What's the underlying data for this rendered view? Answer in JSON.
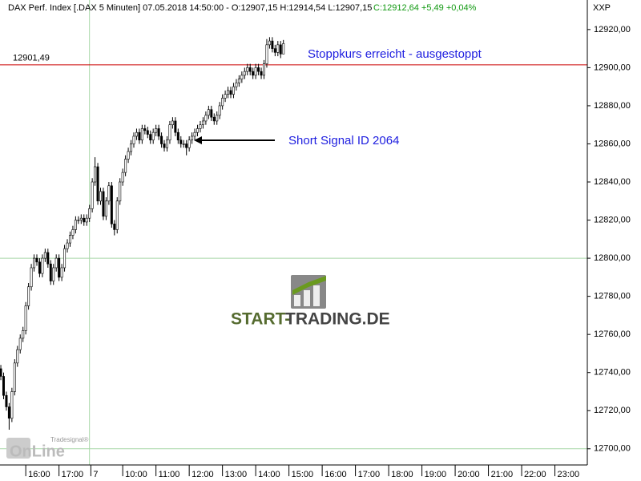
{
  "chart_data": {
    "type": "candlestick",
    "header": {
      "text": "DAX Perf. Index [.DAX  5 Minuten] 07.05.2018 14:50:00 - O:12907,15 H:12914,54 L:12907,15",
      "change": "C:12912,64 +5,49 +0,04%"
    },
    "axis_label": "XXP",
    "x": [
      0,
      1,
      2,
      3,
      4,
      5,
      6,
      7,
      8,
      9,
      10,
      11,
      12,
      13,
      14,
      15,
      16,
      17,
      18,
      19,
      20,
      21,
      22,
      23,
      24,
      25,
      26,
      27,
      28,
      29,
      30,
      31,
      32,
      33,
      34,
      35,
      36,
      37,
      38,
      39,
      40,
      41,
      42,
      43,
      44,
      45,
      46,
      47,
      48,
      49,
      50,
      51,
      52,
      53,
      54,
      55,
      56,
      57,
      58,
      59,
      60,
      61,
      62,
      63,
      64,
      65,
      66,
      67,
      68,
      69,
      70,
      71,
      72,
      73,
      74,
      75,
      76,
      77,
      78,
      79,
      80,
      81,
      82,
      83,
      84,
      85,
      86,
      87,
      88,
      89,
      90,
      91,
      92,
      93,
      94,
      95,
      96,
      97,
      98,
      99,
      100,
      101,
      102
    ],
    "open": [
      12742,
      12738,
      12728,
      12722,
      12716,
      12730,
      12745,
      12752,
      12758,
      12762,
      12775,
      12785,
      12795,
      12800,
      12798,
      12792,
      12800,
      12803,
      12797,
      12788,
      12795,
      12800,
      12790,
      12795,
      12805,
      12808,
      12812,
      12815,
      12820,
      12820,
      12821,
      12819,
      12821,
      12826,
      12840,
      12848,
      12830,
      12835,
      12822,
      12830,
      12838,
      12818,
      12815,
      12830,
      12840,
      12845,
      12852,
      12856,
      12860,
      12864,
      12866,
      12862,
      12868,
      12867,
      12865,
      12862,
      12866,
      12868,
      12864,
      12860,
      12858,
      12862,
      12870,
      12872,
      12866,
      12862,
      12860,
      12860,
      12858,
      12862,
      12864,
      12866,
      12868,
      12870,
      12872,
      12875,
      12878,
      12874,
      12872,
      12875,
      12880,
      12884,
      12886,
      12888,
      12886,
      12890,
      12892,
      12894,
      12896,
      12898,
      12900,
      12898,
      12896,
      12900,
      12898,
      12896,
      12902,
      12912,
      12914,
      12910,
      12908,
      12912,
      12907.15
    ],
    "high": [
      12744,
      12740,
      12730,
      12724,
      12732,
      12747,
      12754,
      12760,
      12764,
      12777,
      12787,
      12797,
      12802,
      12802,
      12800,
      12802,
      12805,
      12805,
      12799,
      12797,
      12802,
      12802,
      12797,
      12807,
      12810,
      12814,
      12817,
      12822,
      12822,
      12823,
      12823,
      12823,
      12828,
      12842,
      12853,
      12850,
      12837,
      12837,
      12832,
      12840,
      12840,
      12820,
      12832,
      12842,
      12847,
      12854,
      12858,
      12862,
      12866,
      12868,
      12868,
      12870,
      12870,
      12869,
      12867,
      12868,
      12870,
      12870,
      12866,
      12862,
      12864,
      12872,
      12874,
      12874,
      12868,
      12864,
      12862,
      12862,
      12864,
      12866,
      12868,
      12870,
      12872,
      12874,
      12877,
      12880,
      12880,
      12876,
      12877,
      12882,
      12886,
      12888,
      12890,
      12890,
      12892,
      12894,
      12896,
      12898,
      12900,
      12902,
      12902,
      12900,
      12902,
      12902,
      12900,
      12904,
      12915,
      12916,
      12916,
      12912,
      12914,
      12914,
      12914.54
    ],
    "low": [
      12736,
      12726,
      12720,
      12710,
      12714,
      12728,
      12743,
      12750,
      12756,
      12760,
      12773,
      12783,
      12793,
      12796,
      12790,
      12790,
      12798,
      12795,
      12786,
      12786,
      12793,
      12788,
      12788,
      12793,
      12803,
      12806,
      12810,
      12813,
      12818,
      12818,
      12817,
      12817,
      12819,
      12824,
      12838,
      12828,
      12828,
      12820,
      12820,
      12828,
      12816,
      12812,
      12813,
      12828,
      12838,
      12843,
      12850,
      12854,
      12858,
      12862,
      12860,
      12860,
      12865,
      12863,
      12860,
      12860,
      12864,
      12862,
      12858,
      12856,
      12856,
      12860,
      12868,
      12864,
      12860,
      12858,
      12858,
      12854,
      12856,
      12860,
      12862,
      12864,
      12866,
      12868,
      12870,
      12873,
      12872,
      12870,
      12870,
      12873,
      12878,
      12882,
      12884,
      12884,
      12884,
      12888,
      12890,
      12892,
      12894,
      12896,
      12896,
      12894,
      12894,
      12896,
      12894,
      12894,
      12900,
      12910,
      12908,
      12906,
      12906,
      12905,
      12907.15
    ],
    "close": [
      12738,
      12728,
      12722,
      12716,
      12730,
      12745,
      12752,
      12758,
      12762,
      12775,
      12785,
      12795,
      12800,
      12798,
      12792,
      12800,
      12803,
      12797,
      12788,
      12795,
      12800,
      12790,
      12795,
      12805,
      12808,
      12812,
      12815,
      12820,
      12820,
      12821,
      12819,
      12821,
      12826,
      12840,
      12848,
      12830,
      12835,
      12822,
      12830,
      12838,
      12818,
      12815,
      12830,
      12840,
      12845,
      12852,
      12856,
      12860,
      12864,
      12866,
      12862,
      12868,
      12867,
      12865,
      12862,
      12866,
      12868,
      12864,
      12860,
      12858,
      12862,
      12870,
      12872,
      12866,
      12862,
      12860,
      12860,
      12858,
      12862,
      12864,
      12866,
      12868,
      12870,
      12872,
      12875,
      12878,
      12874,
      12872,
      12875,
      12880,
      12884,
      12886,
      12888,
      12886,
      12890,
      12892,
      12894,
      12896,
      12898,
      12900,
      12898,
      12896,
      12900,
      12898,
      12896,
      12902,
      12912,
      12914,
      12910,
      12908,
      12912,
      12907.15,
      12912.64
    ],
    "up_color": "#ffffff",
    "down_color": "#000000",
    "outline_color": "#000000",
    "xlim": [
      -0.3,
      211.7
    ],
    "xticks": [
      {
        "value": 9,
        "label": "16:00"
      },
      {
        "value": 21,
        "label": "17:00"
      },
      {
        "value": 32.5,
        "label": "7"
      },
      {
        "value": 44,
        "label": "10:00"
      },
      {
        "value": 56,
        "label": "11:00"
      },
      {
        "value": 68,
        "label": "12:00"
      },
      {
        "value": 80,
        "label": "13:00"
      },
      {
        "value": 92,
        "label": "14:00"
      },
      {
        "value": 104,
        "label": "15:00"
      },
      {
        "value": 116,
        "label": "16:00"
      },
      {
        "value": 128,
        "label": "17:00"
      },
      {
        "value": 140,
        "label": "18:00"
      },
      {
        "value": 152,
        "label": "19:00"
      },
      {
        "value": 164,
        "label": "20:00"
      },
      {
        "value": 176,
        "label": "21:00"
      },
      {
        "value": 188,
        "label": "22:00"
      },
      {
        "value": 200,
        "label": "23:00"
      }
    ],
    "day_separator": 32,
    "ylim": [
      12691.5,
      12935.5
    ],
    "yticks": [
      {
        "value": 12700,
        "label": "12700,00"
      },
      {
        "value": 12720,
        "label": "12720,00"
      },
      {
        "value": 12740,
        "label": "12740,00"
      },
      {
        "value": 12760,
        "label": "12760,00"
      },
      {
        "value": 12780,
        "label": "12780,00"
      },
      {
        "value": 12800,
        "label": "12800,00"
      },
      {
        "value": 12820,
        "label": "12820,00"
      },
      {
        "value": 12840,
        "label": "12840,00"
      },
      {
        "value": 12860,
        "label": "12860,00"
      },
      {
        "value": 12880,
        "label": "12880,00"
      },
      {
        "value": 12900,
        "label": "12900,00"
      },
      {
        "value": 12920,
        "label": "12920,00"
      }
    ],
    "grid_lines": [
      12700,
      12800
    ],
    "grid_color": "#a8d8a8",
    "reference_line": {
      "value": 12901.49,
      "label": "12901,49",
      "color": "#cc0000"
    },
    "annotations": {
      "stop": "Stoppkurs erreicht - ausgestoppt",
      "signal": "Short Signal ID 2064"
    },
    "watermark": [
      "START-",
      "TRADING.DE"
    ],
    "logo": {
      "small": "Tradesignal®",
      "big": "OnLine"
    }
  }
}
